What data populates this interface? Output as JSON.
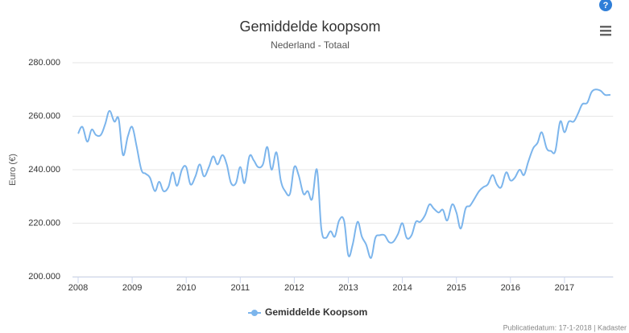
{
  "chart_data": {
    "type": "line",
    "title": "Gemiddelde koopsom",
    "subtitle": "Nederland - Totaal",
    "y_label": "Euro (€)",
    "credits": "Publicatiedatum: 17-1-2018 | Kadaster",
    "grid": true,
    "xlim": [
      2008,
      2017.9
    ],
    "xticks": [
      2008,
      2009,
      2010,
      2011,
      2012,
      2013,
      2014,
      2015,
      2016,
      2017
    ],
    "ylim": [
      200000,
      280000
    ],
    "yticks": [
      {
        "value": 200000,
        "label": "200.000"
      },
      {
        "value": 220000,
        "label": "220.000"
      },
      {
        "value": 240000,
        "label": "240.000"
      },
      {
        "value": 260000,
        "label": "260.000"
      },
      {
        "value": 280000,
        "label": "280.000"
      }
    ],
    "x": [
      2008.0,
      2008.08,
      2008.17,
      2008.25,
      2008.33,
      2008.42,
      2008.5,
      2008.58,
      2008.67,
      2008.75,
      2008.83,
      2008.92,
      2009.0,
      2009.08,
      2009.17,
      2009.25,
      2009.33,
      2009.42,
      2009.5,
      2009.58,
      2009.67,
      2009.75,
      2009.83,
      2009.92,
      2010.0,
      2010.08,
      2010.17,
      2010.25,
      2010.33,
      2010.42,
      2010.5,
      2010.58,
      2010.67,
      2010.75,
      2010.83,
      2010.92,
      2011.0,
      2011.08,
      2011.17,
      2011.25,
      2011.33,
      2011.42,
      2011.5,
      2011.58,
      2011.67,
      2011.75,
      2011.83,
      2011.92,
      2012.0,
      2012.08,
      2012.17,
      2012.25,
      2012.33,
      2012.42,
      2012.5,
      2012.58,
      2012.67,
      2012.75,
      2012.83,
      2012.92,
      2013.0,
      2013.08,
      2013.17,
      2013.25,
      2013.33,
      2013.42,
      2013.5,
      2013.58,
      2013.67,
      2013.75,
      2013.83,
      2013.92,
      2014.0,
      2014.08,
      2014.17,
      2014.25,
      2014.33,
      2014.42,
      2014.5,
      2014.58,
      2014.67,
      2014.75,
      2014.83,
      2014.92,
      2015.0,
      2015.08,
      2015.17,
      2015.25,
      2015.33,
      2015.42,
      2015.5,
      2015.58,
      2015.67,
      2015.75,
      2015.83,
      2015.92,
      2016.0,
      2016.08,
      2016.17,
      2016.25,
      2016.33,
      2016.42,
      2016.5,
      2016.58,
      2016.67,
      2016.75,
      2016.83,
      2016.92,
      2017.0,
      2017.08,
      2017.17,
      2017.25,
      2017.33,
      2017.42,
      2017.5,
      2017.58,
      2017.67,
      2017.75,
      2017.85
    ],
    "series": [
      {
        "name": "Gemiddelde Koopsom",
        "color": "#7cb5ec",
        "values": [
          253500,
          256000,
          250500,
          255000,
          253000,
          253000,
          257000,
          262000,
          258000,
          259000,
          245500,
          252500,
          256000,
          249000,
          240000,
          238500,
          237000,
          232000,
          235500,
          232000,
          233500,
          239000,
          234000,
          240000,
          241000,
          234500,
          237500,
          242000,
          237500,
          241000,
          245000,
          242000,
          245500,
          242000,
          235000,
          235000,
          241000,
          235000,
          245000,
          243500,
          241000,
          242000,
          248500,
          240000,
          246500,
          236000,
          232000,
          231000,
          241000,
          238000,
          231000,
          232000,
          229000,
          240000,
          218000,
          214500,
          217000,
          215000,
          221000,
          221000,
          208000,
          212000,
          220500,
          215000,
          212000,
          207000,
          214500,
          215500,
          215500,
          213000,
          213000,
          216000,
          220000,
          214500,
          215500,
          220500,
          220500,
          223000,
          227000,
          225500,
          224000,
          225000,
          221000,
          227000,
          224000,
          218000,
          225500,
          226500,
          229000,
          232000,
          233500,
          234500,
          238000,
          234500,
          233500,
          239000,
          236000,
          237000,
          240000,
          238000,
          243000,
          248000,
          250000,
          254000,
          248000,
          247000,
          247000,
          258000,
          254000,
          258000,
          258000,
          261000,
          264500,
          265000,
          269000,
          270000,
          269500,
          268000,
          268000
        ]
      }
    ]
  }
}
